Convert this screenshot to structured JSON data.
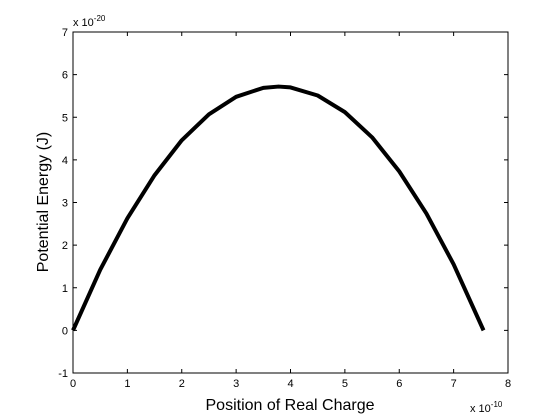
{
  "chart_data": {
    "type": "line",
    "x_label": "Position of Real Charge",
    "y_label": "Potential Energy (J)",
    "x_multiplier": {
      "base": "x 10",
      "exponent": "-10"
    },
    "y_multiplier": {
      "base": "x 10",
      "exponent": "-20"
    },
    "x": [
      0,
      0.5,
      1,
      1.5,
      2,
      2.5,
      3,
      3.5,
      3.78,
      4,
      4.5,
      5,
      5.5,
      6,
      6.5,
      7,
      7.55
    ],
    "series": [
      {
        "color": "#000000",
        "values": [
          0,
          1.42,
          2.63,
          3.64,
          4.46,
          5.07,
          5.48,
          5.69,
          5.72,
          5.7,
          5.51,
          5.12,
          4.53,
          3.73,
          2.74,
          1.55,
          0
        ]
      }
    ],
    "xlim": [
      0,
      8
    ],
    "ylim": [
      -1,
      7
    ],
    "xticks": [
      0,
      1,
      2,
      3,
      4,
      5,
      6,
      7,
      8
    ],
    "yticks": [
      -1,
      0,
      1,
      2,
      3,
      4,
      5,
      6,
      7
    ]
  }
}
